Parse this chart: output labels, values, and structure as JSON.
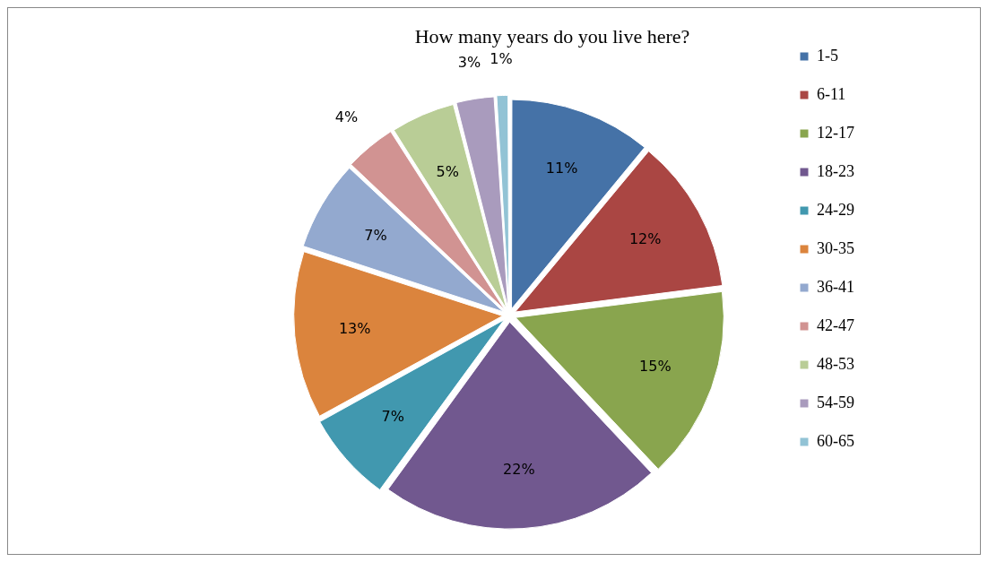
{
  "chart_data": {
    "type": "pie",
    "title": "How many years do you live here?",
    "categories": [
      "1-5",
      "6-11",
      "12-17",
      "18-23",
      "24-29",
      "30-35",
      "36-41",
      "42-47",
      "48-53",
      "54-59",
      "60-65"
    ],
    "values": [
      11,
      12,
      15,
      22,
      7,
      13,
      7,
      4,
      5,
      3,
      1
    ],
    "colors": [
      "#4572a7",
      "#aa4643",
      "#89a54e",
      "#71588f",
      "#4198af",
      "#db843d",
      "#93a9cf",
      "#d19392",
      "#b9cd96",
      "#a99bbd",
      "#92c3d5"
    ],
    "value_labels": [
      "11%",
      "12%",
      "15%",
      "22%",
      "7%",
      "13%",
      "7%",
      "4%",
      "5%",
      "3%",
      "1%"
    ],
    "legend": "right"
  }
}
